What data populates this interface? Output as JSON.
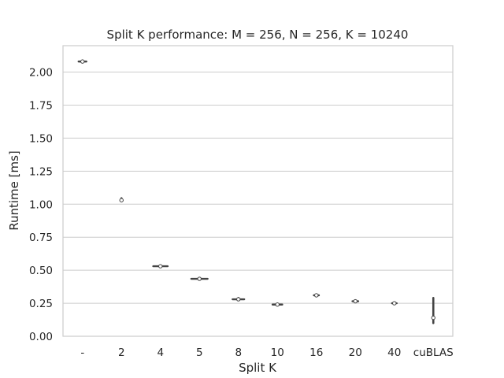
{
  "chart_data": {
    "type": "violin",
    "title": "Split K performance: M = 256, N = 256, K = 10240",
    "xlabel": "Split K",
    "ylabel": "Runtime [ms]",
    "ylim": [
      0,
      2.2
    ],
    "yticks": [
      "0.00",
      "0.25",
      "0.50",
      "0.75",
      "1.00",
      "1.25",
      "1.50",
      "1.75",
      "2.00"
    ],
    "grid": true,
    "categories": [
      "-",
      "2",
      "4",
      "5",
      "8",
      "10",
      "16",
      "20",
      "40",
      "cuBLAS"
    ],
    "series": [
      {
        "median": [
          2.08,
          1.03,
          0.53,
          0.435,
          0.28,
          0.24,
          0.31,
          0.265,
          0.25,
          0.14
        ],
        "min": [
          2.075,
          1.025,
          0.525,
          0.43,
          0.275,
          0.235,
          0.305,
          0.26,
          0.245,
          0.1
        ],
        "max": [
          2.085,
          1.045,
          0.535,
          0.44,
          0.29,
          0.245,
          0.315,
          0.27,
          0.255,
          0.29
        ],
        "halfwidth": [
          0.2,
          0.05,
          0.37,
          0.42,
          0.3,
          0.25,
          0.13,
          0.15,
          0.12,
          0.03
        ]
      }
    ]
  }
}
